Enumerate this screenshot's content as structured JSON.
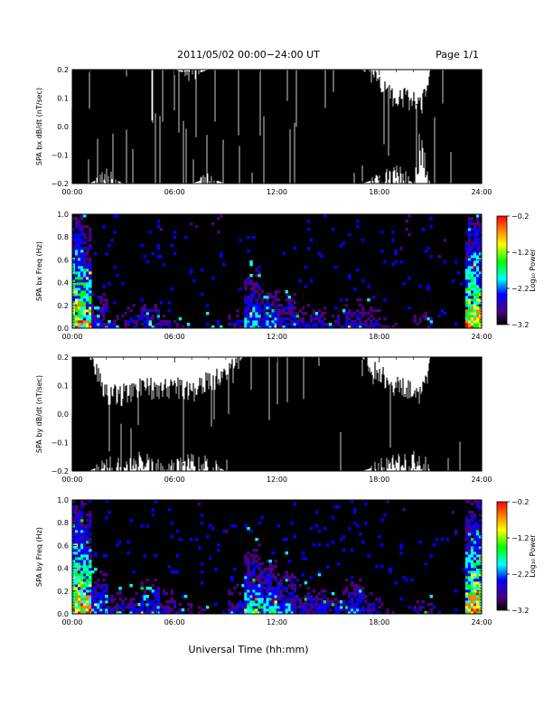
{
  "header": {
    "title": "2011/05/02  00:00−24:00 UT",
    "page": "Page 1/1"
  },
  "colors": {
    "trace": "#000000",
    "background": "#000000",
    "colormap": [
      "#000000",
      "#4b0082",
      "#0000ff",
      "#00ffff",
      "#00ff00",
      "#ffff00",
      "#ff8000",
      "#ff0000"
    ]
  },
  "chart_data": [
    {
      "type": "line",
      "ylabel": "SPA bx dB/dt (nT/sec)",
      "x_ticks": [
        "00:00",
        "06:00",
        "12:00",
        "18:00",
        "24:00"
      ],
      "y_ticks": [
        "0.2",
        "0.1",
        "0.0",
        "−0.1",
        "−0.2"
      ],
      "xlim": [
        0,
        24
      ],
      "ylim": [
        -0.2,
        0.2
      ],
      "series": [
        {
          "x": [
            0,
            1,
            2,
            3,
            4,
            5,
            6,
            7,
            8,
            9,
            10,
            11,
            12,
            13,
            14,
            15,
            16,
            17,
            18,
            19,
            20,
            20.5,
            21,
            22,
            23,
            24
          ],
          "upper": [
            0.2,
            0.2,
            0.2,
            0.2,
            0.2,
            0.2,
            0.2,
            0.18,
            0.2,
            0.2,
            0.2,
            0.2,
            0.2,
            0.2,
            0.2,
            0.2,
            0.2,
            0.2,
            0.15,
            0.08,
            0.08,
            0.05,
            0.2,
            0.2,
            0.2,
            0.2
          ],
          "lower": [
            -0.2,
            -0.2,
            -0.17,
            -0.2,
            -0.2,
            -0.2,
            -0.2,
            -0.2,
            -0.18,
            -0.2,
            -0.2,
            -0.2,
            -0.2,
            -0.2,
            -0.2,
            -0.2,
            -0.2,
            -0.2,
            -0.18,
            -0.15,
            -0.2,
            -0.07,
            -0.2,
            -0.2,
            -0.2,
            -0.2
          ]
        }
      ]
    },
    {
      "type": "heatmap",
      "ylabel": "SPA bx Freq (Hz)",
      "x_ticks": [
        "00:00",
        "06:00",
        "12:00",
        "18:00",
        "24:00"
      ],
      "y_ticks": [
        "1.0",
        "0.8",
        "0.6",
        "0.4",
        "0.2",
        "0.0"
      ],
      "xlim": [
        0,
        24
      ],
      "ylim": [
        0,
        1
      ],
      "colorbar": {
        "label": "Log₁₀ Power",
        "ticks": [
          "−0.2",
          "−1.2",
          "−2.2",
          "−3.2"
        ],
        "range": [
          -3.2,
          -0.2
        ]
      },
      "activity": [
        0.9,
        0.45,
        0.3,
        0.35,
        0.4,
        0.3,
        0.25,
        0.2,
        0.2,
        0.35,
        0.6,
        0.5,
        0.45,
        0.35,
        0.35,
        0.3,
        0.4,
        0.35,
        0.25,
        0.2,
        0.3,
        0.15,
        0.15,
        0.95
      ]
    },
    {
      "type": "line",
      "ylabel": "SPA by dB/dt (nT/sec)",
      "x_ticks": [
        "00:00",
        "06:00",
        "12:00",
        "18:00",
        "24:00"
      ],
      "y_ticks": [
        "0.2",
        "0.1",
        "0.0",
        "−0.1",
        "−0.2"
      ],
      "xlim": [
        0,
        24
      ],
      "ylim": [
        -0.2,
        0.2
      ],
      "series": [
        {
          "x": [
            0,
            1,
            2,
            3,
            4,
            5,
            6,
            7,
            8,
            9,
            10,
            11,
            12,
            13,
            14,
            15,
            16,
            17,
            18,
            19,
            20,
            20.5,
            21,
            22,
            23,
            24
          ],
          "upper": [
            0.2,
            0.2,
            0.05,
            0.05,
            0.08,
            0.07,
            0.08,
            0.05,
            0.1,
            0.12,
            0.2,
            0.2,
            0.2,
            0.2,
            0.2,
            0.2,
            0.2,
            0.2,
            0.12,
            0.08,
            0.06,
            0.06,
            0.2,
            0.2,
            0.2,
            0.2
          ],
          "lower": [
            -0.2,
            -0.2,
            -0.17,
            -0.18,
            -0.15,
            -0.18,
            -0.18,
            -0.16,
            -0.17,
            -0.2,
            -0.2,
            -0.2,
            -0.2,
            -0.2,
            -0.2,
            -0.2,
            -0.2,
            -0.2,
            -0.18,
            -0.15,
            -0.15,
            -0.15,
            -0.2,
            -0.2,
            -0.2,
            -0.2
          ]
        }
      ]
    },
    {
      "type": "heatmap",
      "ylabel": "SPA by Freq (Hz)",
      "xlabel": "Universal Time (hh:mm)",
      "x_ticks": [
        "00:00",
        "06:00",
        "12:00",
        "18:00",
        "24:00"
      ],
      "y_ticks": [
        "1.0",
        "0.8",
        "0.6",
        "0.4",
        "0.2",
        "0.0"
      ],
      "xlim": [
        0,
        24
      ],
      "ylim": [
        0,
        1
      ],
      "colorbar": {
        "label": "Log₁₀ Power",
        "ticks": [
          "−0.2",
          "−1.2",
          "−2.2",
          "−3.2"
        ],
        "range": [
          -3.2,
          -0.2
        ]
      },
      "activity": [
        0.95,
        0.5,
        0.35,
        0.35,
        0.45,
        0.35,
        0.3,
        0.25,
        0.2,
        0.4,
        0.7,
        0.6,
        0.5,
        0.4,
        0.4,
        0.35,
        0.45,
        0.35,
        0.25,
        0.2,
        0.3,
        0.15,
        0.15,
        0.95
      ]
    }
  ]
}
